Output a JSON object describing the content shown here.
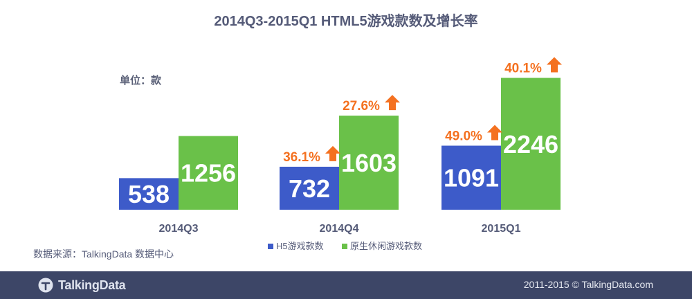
{
  "chart_data": {
    "type": "bar",
    "title": "2014Q3-2015Q1 HTML5游戏款数及增长率",
    "unit_label": "单位：款",
    "categories": [
      "2014Q3",
      "2014Q4",
      "2015Q1"
    ],
    "series": [
      {
        "name": "H5游戏款数",
        "color": "#3d5bc9",
        "values": [
          538,
          732,
          1091
        ],
        "value_labels": [
          "538",
          "732",
          "1091"
        ],
        "growth_labels": [
          "",
          "36.1%",
          "49.0%"
        ]
      },
      {
        "name": "原生休闲游戏款数",
        "color": "#6ac149",
        "values": [
          1256,
          1603,
          2246
        ],
        "value_labels": [
          "1256",
          "1603",
          "2246"
        ],
        "growth_labels": [
          "",
          "27.6%",
          "40.1%"
        ]
      }
    ],
    "growth_color": "#f47120",
    "ylim": [
      0,
      2500
    ],
    "grid": false,
    "legend_position": "bottom",
    "source_note": "数据来源：TalkingData 数据中心"
  },
  "footer": {
    "brand": "TalkingData",
    "copyright": "2011-2015 © TalkingData.com"
  },
  "icons": {
    "brand_logo": "talkingdata-logo-icon",
    "growth_arrow": "up-arrow-icon"
  }
}
